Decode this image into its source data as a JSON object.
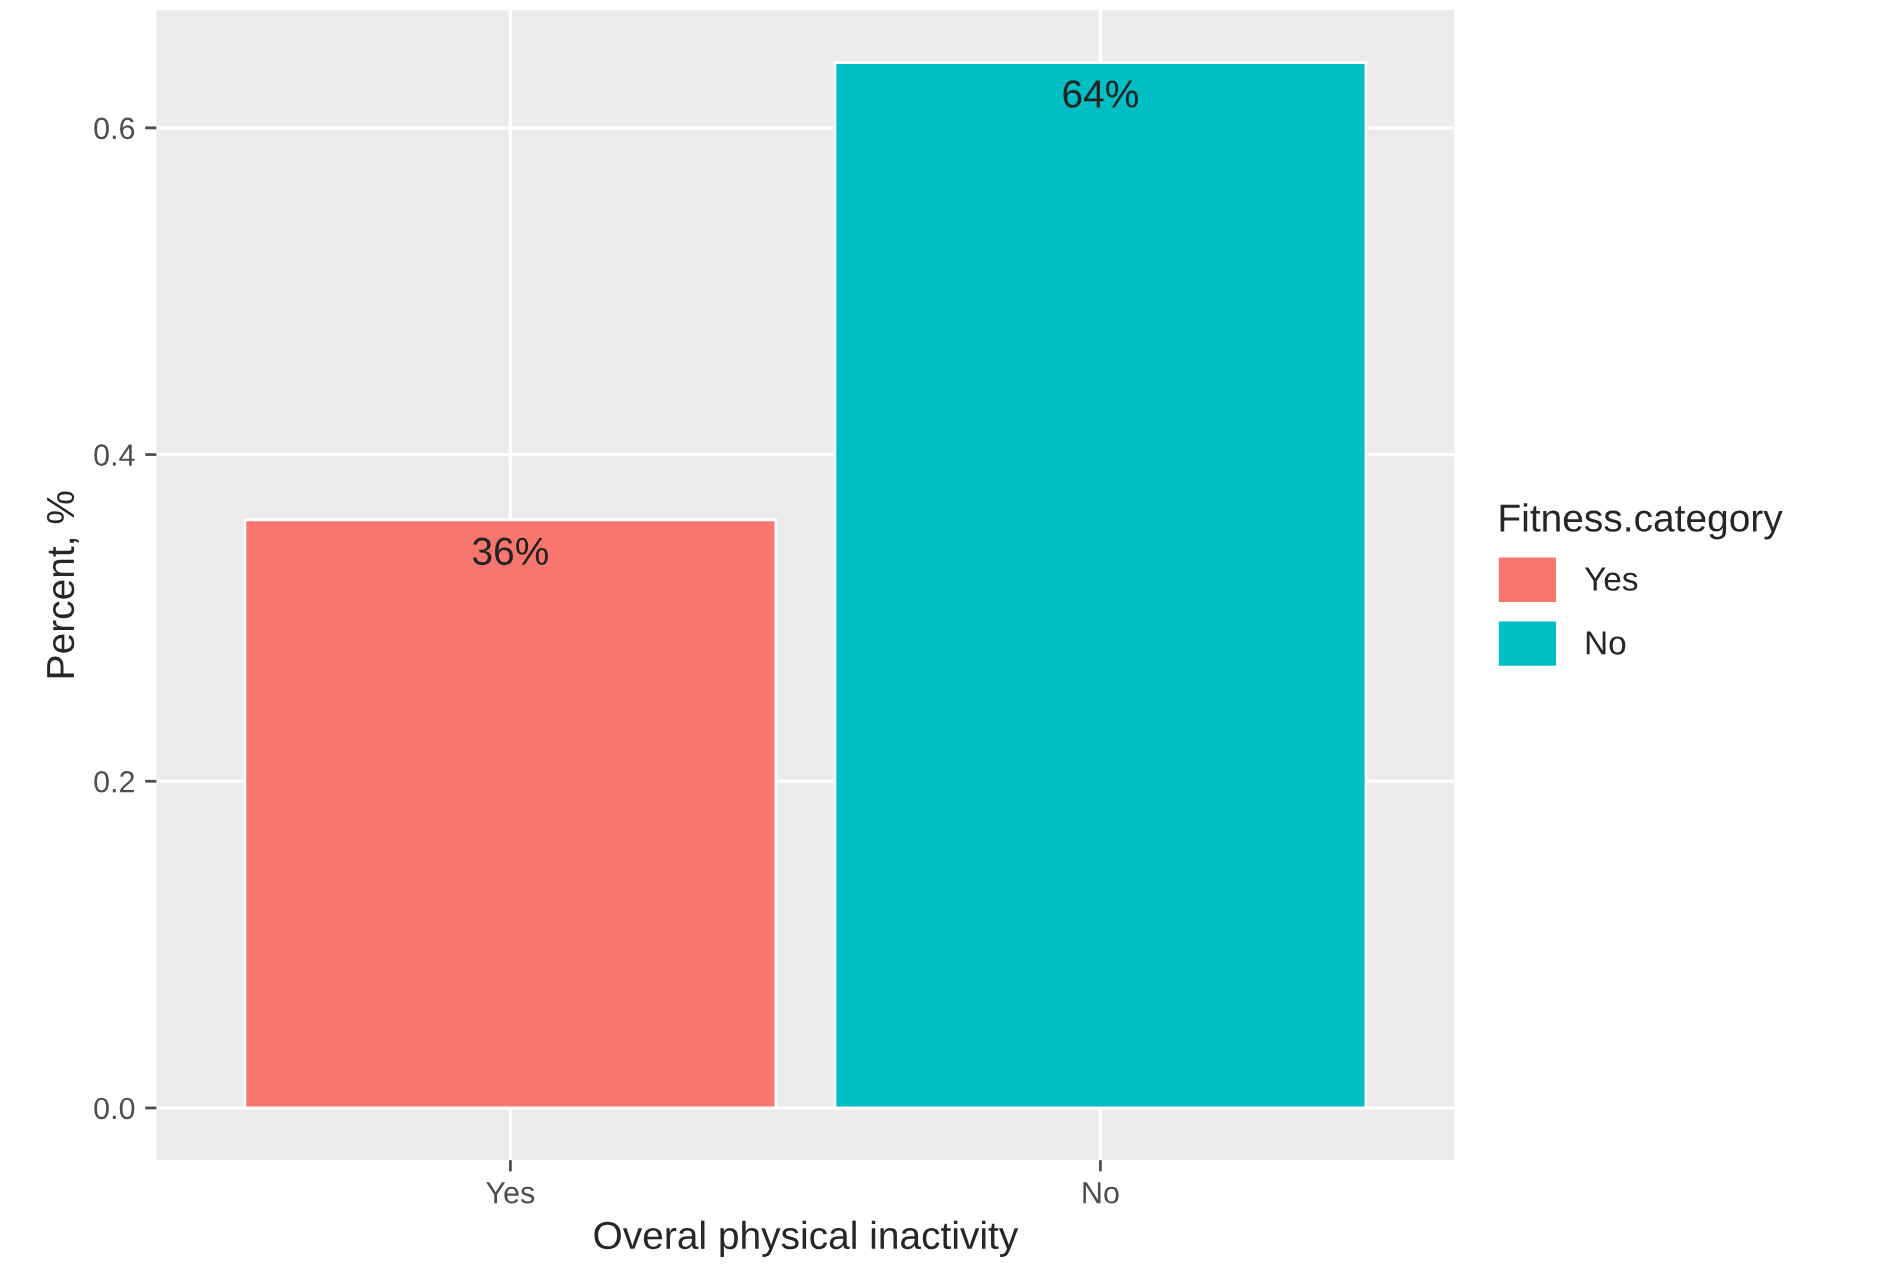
{
  "chart_data": {
    "type": "bar",
    "xlabel": "Overal physical inactivity",
    "ylabel": "Percent, %",
    "legend_title": "Fitness.category",
    "categories": [
      "Yes",
      "No"
    ],
    "series": [
      {
        "name": "Yes",
        "color": "#f8766d",
        "values": [
          0.36,
          null
        ],
        "value_labels": [
          "36%",
          null
        ]
      },
      {
        "name": "No",
        "color": "#00bfc4",
        "values": [
          null,
          0.64
        ],
        "value_labels": [
          null,
          "64%"
        ]
      }
    ],
    "ylim": [
      -0.032,
      0.672
    ],
    "yticks": [
      {
        "value": 0,
        "label": "0.0"
      },
      0.2,
      0.4,
      0.6
    ],
    "grid": true,
    "legend": "right"
  }
}
